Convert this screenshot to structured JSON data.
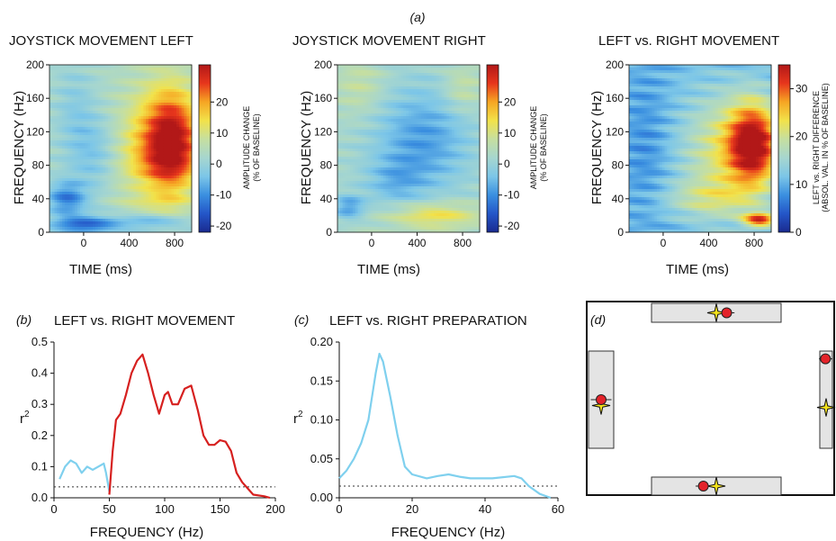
{
  "figure": {
    "label_a": "(a)",
    "label_b": "(b)",
    "label_c": "(c)",
    "label_d": "(d)"
  },
  "colors": {
    "cold": [
      "#1a2a8f",
      "#2456c8",
      "#3a8fe0",
      "#7cc6e8",
      "#a6d6cf",
      "#c6dfa0",
      "#f2e24a",
      "#f6a623",
      "#e7361c",
      "#b21818"
    ],
    "red_line": "#d6201f",
    "blue_line": "#7fd0ee",
    "box_fill": "#e4e4e4",
    "dot_red": "#e3232a",
    "star_yellow": "#f4e21c"
  },
  "chart_data": [
    {
      "type": "heatmap",
      "title": "JOYSTICK MOVEMENT LEFT",
      "xlabel": "TIME (ms)",
      "ylabel": "FREQUENCY (Hz)",
      "xlim": [
        -300,
        950
      ],
      "ylim": [
        0,
        200
      ],
      "xticks": [
        0,
        400,
        800
      ],
      "yticks": [
        0,
        40,
        80,
        120,
        160,
        200
      ],
      "colorbar": {
        "label_line1": "AMPLITUDE CHANGE",
        "label_line2": "(% OF BASELINE)",
        "range": [
          -22,
          32
        ],
        "ticks": [
          -20,
          -10,
          0,
          10,
          20
        ]
      },
      "blobs": [
        {
          "t": 780,
          "f": 105,
          "st": 170,
          "sf": 45,
          "a": 30
        },
        {
          "t": 520,
          "f": 90,
          "st": 220,
          "sf": 55,
          "a": 10
        },
        {
          "t": -150,
          "f": 40,
          "st": 120,
          "sf": 14,
          "a": -14
        },
        {
          "t": 0,
          "f": 8,
          "st": 200,
          "sf": 8,
          "a": -16
        },
        {
          "t": 600,
          "f": 12,
          "st": 250,
          "sf": 9,
          "a": -12
        },
        {
          "t": 100,
          "f": 95,
          "st": 160,
          "sf": 35,
          "a": -7
        },
        {
          "t": -80,
          "f": 150,
          "st": 120,
          "sf": 40,
          "a": -4
        },
        {
          "t": 700,
          "f": 55,
          "st": 250,
          "sf": 10,
          "a": -5
        }
      ]
    },
    {
      "type": "heatmap",
      "title": "JOYSTICK MOVEMENT RIGHT",
      "xlabel": "TIME (ms)",
      "ylabel": "FREQUENCY (Hz)",
      "xlim": [
        -300,
        950
      ],
      "ylim": [
        0,
        200
      ],
      "xticks": [
        0,
        400,
        800
      ],
      "yticks": [
        0,
        40,
        80,
        120,
        160,
        200
      ],
      "colorbar": {
        "label_line1": "AMPLITUDE CHANGE",
        "label_line2": "(% OF BASELINE)",
        "range": [
          -22,
          32
        ],
        "ticks": [
          -20,
          -10,
          0,
          10,
          20
        ]
      },
      "blobs": [
        {
          "t": 450,
          "f": 110,
          "st": 300,
          "sf": 45,
          "a": -11
        },
        {
          "t": 550,
          "f": 20,
          "st": 280,
          "sf": 11,
          "a": 12
        },
        {
          "t": -200,
          "f": 30,
          "st": 100,
          "sf": 10,
          "a": -11
        },
        {
          "t": -100,
          "f": 175,
          "st": 150,
          "sf": 25,
          "a": 5
        },
        {
          "t": 800,
          "f": 170,
          "st": 120,
          "sf": 20,
          "a": 6
        },
        {
          "t": 200,
          "f": 60,
          "st": 180,
          "sf": 20,
          "a": -6
        }
      ]
    },
    {
      "type": "heatmap",
      "title": "LEFT vs. RIGHT MOVEMENT",
      "xlabel": "TIME (ms)",
      "ylabel": "FREQUENCY (Hz)",
      "xlim": [
        -300,
        950
      ],
      "ylim": [
        0,
        200
      ],
      "xticks": [
        0,
        400,
        800
      ],
      "yticks": [
        0,
        40,
        80,
        120,
        160,
        200
      ],
      "colorbar": {
        "label_line1": "LEFT vs. RIGHT DIFFERENCE",
        "label_line2": "(ABSOL. VAL. IN % OF BASELINE)",
        "range": [
          0,
          35
        ],
        "ticks": [
          0,
          10,
          20,
          30
        ]
      },
      "blobs": [
        {
          "t": 800,
          "f": 105,
          "st": 160,
          "sf": 35,
          "a": 24
        },
        {
          "t": 500,
          "f": 95,
          "st": 250,
          "sf": 50,
          "a": 9
        },
        {
          "t": 850,
          "f": 15,
          "st": 100,
          "sf": 6,
          "a": 20
        },
        {
          "t": 400,
          "f": 40,
          "st": 300,
          "sf": 15,
          "a": 6
        },
        {
          "t": -150,
          "f": 100,
          "st": 150,
          "sf": 70,
          "a": -3
        }
      ]
    },
    {
      "type": "line",
      "title": "LEFT vs. RIGHT MOVEMENT",
      "xlabel": "FREQUENCY (Hz)",
      "ylabel": "r2",
      "xlim": [
        0,
        200
      ],
      "ylim": [
        0,
        0.5
      ],
      "xticks": [
        0,
        50,
        100,
        150,
        200
      ],
      "yticks": [
        0,
        0.1,
        0.2,
        0.3,
        0.4,
        0.5
      ],
      "ytick_labels": [
        "0.0",
        "0.1",
        "0.2",
        "0.3",
        "0.4",
        "0.5"
      ],
      "threshold": 0.035,
      "series": [
        {
          "color": "blue",
          "points": [
            [
              5,
              0.06
            ],
            [
              10,
              0.1
            ],
            [
              15,
              0.12
            ],
            [
              20,
              0.11
            ],
            [
              25,
              0.08
            ],
            [
              30,
              0.1
            ],
            [
              35,
              0.09
            ],
            [
              40,
              0.1
            ],
            [
              45,
              0.11
            ],
            [
              47,
              0.08
            ],
            [
              50,
              0.02
            ]
          ]
        },
        {
          "color": "red",
          "points": [
            [
              50,
              0.01
            ],
            [
              53,
              0.15
            ],
            [
              56,
              0.25
            ],
            [
              60,
              0.27
            ],
            [
              65,
              0.33
            ],
            [
              70,
              0.4
            ],
            [
              75,
              0.44
            ],
            [
              80,
              0.46
            ],
            [
              85,
              0.4
            ],
            [
              90,
              0.33
            ],
            [
              95,
              0.27
            ],
            [
              100,
              0.33
            ],
            [
              103,
              0.34
            ],
            [
              107,
              0.3
            ],
            [
              112,
              0.3
            ],
            [
              118,
              0.35
            ],
            [
              124,
              0.36
            ],
            [
              130,
              0.28
            ],
            [
              135,
              0.2
            ],
            [
              140,
              0.17
            ],
            [
              145,
              0.17
            ],
            [
              150,
              0.185
            ],
            [
              155,
              0.18
            ],
            [
              160,
              0.15
            ],
            [
              165,
              0.08
            ],
            [
              170,
              0.05
            ],
            [
              175,
              0.03
            ],
            [
              180,
              0.01
            ],
            [
              190,
              0.005
            ],
            [
              195,
              0.0
            ]
          ]
        }
      ]
    },
    {
      "type": "line",
      "title": "LEFT vs. RIGHT PREPARATION",
      "xlabel": "FREQUENCY (Hz)",
      "ylabel": "r2",
      "xlim": [
        0,
        60
      ],
      "ylim": [
        0,
        0.2
      ],
      "xticks": [
        0,
        20,
        40,
        60
      ],
      "yticks": [
        0,
        0.05,
        0.1,
        0.15,
        0.2
      ],
      "ytick_labels": [
        "0.00",
        "0.05",
        "0.10",
        "0.15",
        "0.20"
      ],
      "threshold": 0.015,
      "series": [
        {
          "color": "blue",
          "points": [
            [
              0,
              0.025
            ],
            [
              2,
              0.035
            ],
            [
              4,
              0.05
            ],
            [
              6,
              0.07
            ],
            [
              8,
              0.1
            ],
            [
              10,
              0.16
            ],
            [
              11,
              0.185
            ],
            [
              12,
              0.175
            ],
            [
              14,
              0.13
            ],
            [
              16,
              0.08
            ],
            [
              18,
              0.04
            ],
            [
              20,
              0.03
            ],
            [
              24,
              0.025
            ],
            [
              27,
              0.028
            ],
            [
              30,
              0.03
            ],
            [
              33,
              0.027
            ],
            [
              36,
              0.025
            ],
            [
              42,
              0.025
            ],
            [
              48,
              0.028
            ],
            [
              50,
              0.025
            ],
            [
              52,
              0.015
            ],
            [
              55,
              0.005
            ],
            [
              58,
              0.0
            ]
          ]
        }
      ]
    },
    {
      "type": "scatter",
      "title": "",
      "targets": [
        "top",
        "left",
        "right",
        "bottom"
      ],
      "points": [
        {
          "target": "top",
          "star": [
            0.5,
            0.5
          ],
          "dot": [
            0.58,
            0.5
          ],
          "err": 0.06
        },
        {
          "target": "left",
          "star": [
            0.5,
            0.56
          ],
          "dot": [
            0.5,
            0.5
          ],
          "err": 0.08
        },
        {
          "target": "right",
          "star": [
            0.5,
            0.58
          ],
          "dot": [
            0.45,
            0.08
          ],
          "err": 0.05
        },
        {
          "target": "bottom",
          "star": [
            0.5,
            0.5
          ],
          "dot": [
            0.4,
            0.5
          ],
          "err": 0.06
        }
      ]
    }
  ]
}
